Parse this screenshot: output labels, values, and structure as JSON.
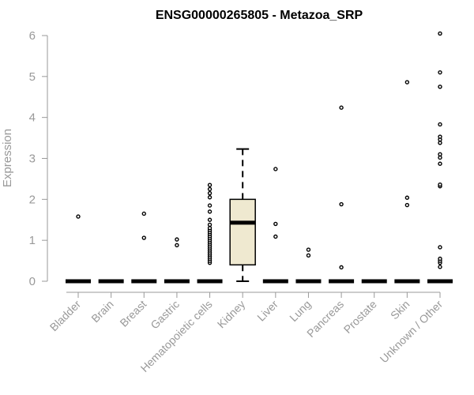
{
  "chart_data": {
    "type": "boxplot",
    "title": "ENSG00000265805 - Metazoa_SRP",
    "ylabel": "Expression",
    "xlabel": "",
    "ylim": [
      0,
      6
    ],
    "yticks": [
      0,
      1,
      2,
      3,
      4,
      5,
      6
    ],
    "box_fill": "#efe9d0",
    "categories": [
      "Bladder",
      "Brain",
      "Breast",
      "Gastric",
      "Hematopoietic cells",
      "Kidney",
      "Liver",
      "Lung",
      "Pancreas",
      "Prostate",
      "Skin",
      "Unknown / Other"
    ],
    "boxes": [
      {
        "category": "Bladder",
        "whisker_low": 0,
        "q1": 0,
        "median": 0,
        "q3": 0,
        "whisker_high": 0,
        "outliers": [
          1.58
        ]
      },
      {
        "category": "Brain",
        "whisker_low": 0,
        "q1": 0,
        "median": 0,
        "q3": 0,
        "whisker_high": 0,
        "outliers": []
      },
      {
        "category": "Breast",
        "whisker_low": 0,
        "q1": 0,
        "median": 0,
        "q3": 0,
        "whisker_high": 0,
        "outliers": [
          1.06,
          1.65
        ]
      },
      {
        "category": "Gastric",
        "whisker_low": 0,
        "q1": 0,
        "median": 0,
        "q3": 0,
        "whisker_high": 0,
        "outliers": [
          0.88,
          1.02
        ]
      },
      {
        "category": "Hematopoietic cells",
        "whisker_low": 0,
        "q1": 0,
        "median": 0,
        "q3": 0,
        "whisker_high": 0,
        "outliers": [
          0.45,
          0.5,
          0.55,
          0.6,
          0.65,
          0.7,
          0.75,
          0.8,
          0.85,
          0.9,
          0.95,
          1.0,
          1.05,
          1.1,
          1.15,
          1.2,
          1.25,
          1.3,
          1.38,
          1.5,
          1.7,
          1.85,
          2.05,
          2.15,
          2.25,
          2.35
        ]
      },
      {
        "category": "Kidney",
        "whisker_low": 0,
        "q1": 0.4,
        "median": 1.43,
        "q3": 2.0,
        "whisker_high": 3.23,
        "outliers": []
      },
      {
        "category": "Liver",
        "whisker_low": 0,
        "q1": 0,
        "median": 0,
        "q3": 0,
        "whisker_high": 0,
        "outliers": [
          1.09,
          1.4,
          2.74
        ]
      },
      {
        "category": "Lung",
        "whisker_low": 0,
        "q1": 0,
        "median": 0,
        "q3": 0,
        "whisker_high": 0,
        "outliers": [
          0.63,
          0.77
        ]
      },
      {
        "category": "Pancreas",
        "whisker_low": 0,
        "q1": 0,
        "median": 0,
        "q3": 0,
        "whisker_high": 0,
        "outliers": [
          0.34,
          1.88,
          4.24
        ]
      },
      {
        "category": "Prostate",
        "whisker_low": 0,
        "q1": 0,
        "median": 0,
        "q3": 0,
        "whisker_high": 0,
        "outliers": []
      },
      {
        "category": "Skin",
        "whisker_low": 0,
        "q1": 0,
        "median": 0,
        "q3": 0,
        "whisker_high": 0,
        "outliers": [
          1.86,
          2.04,
          4.86
        ]
      },
      {
        "category": "Unknown / Other",
        "whisker_low": 0,
        "q1": 0,
        "median": 0,
        "q3": 0,
        "whisker_high": 0,
        "outliers": [
          0.35,
          0.45,
          0.5,
          0.55,
          0.83,
          2.32,
          2.36,
          2.87,
          3.02,
          3.1,
          3.38,
          3.46,
          3.53,
          3.83,
          4.75,
          5.1,
          6.05
        ]
      }
    ]
  }
}
